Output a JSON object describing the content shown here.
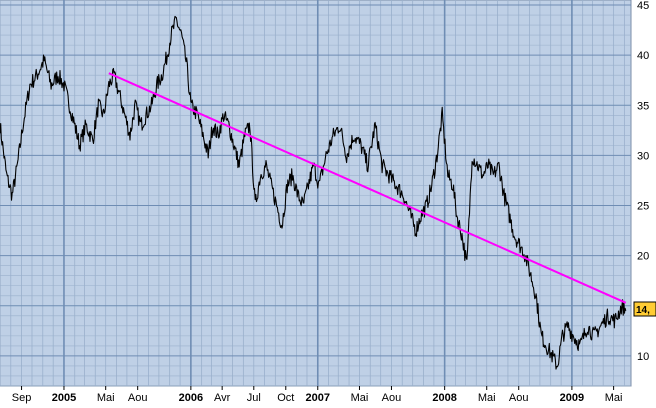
{
  "colors": {
    "plot_background": "#bfd0e6",
    "minor_grid": "#9ab0cc",
    "major_grid": "#6f8db4",
    "price_line": "#000000",
    "trend_line": "#ff00ff",
    "last_value_box": "#ffcc33"
  },
  "last_value_label": "14,",
  "chart_data": {
    "type": "line",
    "title": "",
    "xlabel": "",
    "ylabel": "",
    "ylim": [
      7,
      45.5
    ],
    "yticks": [
      10,
      15,
      20,
      25,
      30,
      35,
      40,
      45
    ],
    "y_axis_position": "right",
    "grid": true,
    "xlim": [
      "2004-07-01",
      "2009-06-20"
    ],
    "x_ticks": [
      {
        "label": "Sep",
        "date": "2004-09-01",
        "major": false
      },
      {
        "label": "2005",
        "date": "2005-01-01",
        "major": true
      },
      {
        "label": "Mai",
        "date": "2005-05-01",
        "major": false
      },
      {
        "label": "Aou",
        "date": "2005-08-01",
        "major": false
      },
      {
        "label": "2006",
        "date": "2006-01-01",
        "major": true
      },
      {
        "label": "Avr",
        "date": "2006-04-01",
        "major": false
      },
      {
        "label": "Jul",
        "date": "2006-07-01",
        "major": false
      },
      {
        "label": "Oct",
        "date": "2006-10-01",
        "major": false
      },
      {
        "label": "2007",
        "date": "2007-01-01",
        "major": true
      },
      {
        "label": "Mai",
        "date": "2007-05-01",
        "major": false
      },
      {
        "label": "Aou",
        "date": "2007-08-01",
        "major": false
      },
      {
        "label": "2008",
        "date": "2008-01-01",
        "major": true
      },
      {
        "label": "Mai",
        "date": "2008-05-01",
        "major": false
      },
      {
        "label": "Aou",
        "date": "2008-08-01",
        "major": false
      },
      {
        "label": "2009",
        "date": "2009-01-01",
        "major": true
      },
      {
        "label": "Mai",
        "date": "2009-05-01",
        "major": false
      }
    ],
    "series": [
      {
        "type": "line",
        "x": [
          "2004-07-01",
          "2004-07-20",
          "2004-08-05",
          "2004-08-20",
          "2004-09-05",
          "2004-09-25",
          "2004-10-15",
          "2004-11-05",
          "2004-11-25",
          "2004-12-15",
          "2005-01-01",
          "2005-01-25",
          "2005-02-15",
          "2005-03-05",
          "2005-03-25",
          "2005-04-10",
          "2005-04-25",
          "2005-05-10",
          "2005-05-25",
          "2005-06-10",
          "2005-06-25",
          "2005-07-10",
          "2005-07-25",
          "2005-08-10",
          "2005-08-25",
          "2005-09-10",
          "2005-09-25",
          "2005-10-10",
          "2005-10-25",
          "2005-11-05",
          "2005-11-20",
          "2005-12-05",
          "2005-12-20",
          "2006-01-01",
          "2006-01-20",
          "2006-02-05",
          "2006-02-20",
          "2006-03-05",
          "2006-03-20",
          "2006-04-05",
          "2006-04-20",
          "2006-05-05",
          "2006-05-20",
          "2006-06-05",
          "2006-06-20",
          "2006-07-05",
          "2006-07-20",
          "2006-08-05",
          "2006-08-20",
          "2006-09-05",
          "2006-09-20",
          "2006-10-05",
          "2006-10-20",
          "2006-11-05",
          "2006-11-20",
          "2006-12-05",
          "2006-12-20",
          "2007-01-05",
          "2007-01-25",
          "2007-02-15",
          "2007-03-05",
          "2007-03-25",
          "2007-04-15",
          "2007-05-05",
          "2007-05-25",
          "2007-06-15",
          "2007-07-05",
          "2007-07-25",
          "2007-08-15",
          "2007-09-05",
          "2007-09-25",
          "2007-10-10",
          "2007-10-25",
          "2007-11-10",
          "2007-11-25",
          "2007-12-10",
          "2007-12-25",
          "2008-01-10",
          "2008-01-25",
          "2008-02-05",
          "2008-02-20",
          "2008-03-05",
          "2008-03-20",
          "2008-04-05",
          "2008-04-20",
          "2008-05-05",
          "2008-05-20",
          "2008-06-05",
          "2008-06-20",
          "2008-07-05",
          "2008-07-20",
          "2008-08-05",
          "2008-08-20",
          "2008-09-05",
          "2008-09-20",
          "2008-10-05",
          "2008-10-20",
          "2008-11-05",
          "2008-11-20",
          "2008-12-05",
          "2008-12-20",
          "2009-01-05",
          "2009-01-25",
          "2009-02-15",
          "2009-03-05",
          "2009-03-25",
          "2009-04-15",
          "2009-05-05",
          "2009-05-25",
          "2009-06-05"
        ],
        "values": [
          33,
          28,
          26,
          29,
          33,
          37,
          38,
          39.5,
          37,
          38,
          37,
          34,
          31,
          33,
          31.5,
          35,
          34,
          37,
          38,
          36,
          34,
          32,
          35,
          33,
          34,
          35,
          37,
          38,
          40,
          42,
          43.5,
          42,
          39,
          35,
          34,
          32,
          30,
          33,
          32,
          34,
          33,
          31,
          29,
          32,
          33,
          25,
          28,
          29,
          27,
          25,
          23,
          27,
          28,
          26,
          25,
          27,
          29,
          27,
          30,
          32,
          33,
          30,
          32,
          31,
          29,
          33,
          29,
          28,
          27,
          26,
          24,
          22.5,
          24,
          25,
          27,
          30,
          34,
          28,
          27,
          24,
          22,
          19,
          30,
          29,
          28,
          29,
          28,
          29,
          26,
          24,
          22,
          21,
          20,
          18,
          16,
          12,
          11,
          10,
          9,
          12,
          13,
          12,
          11,
          13,
          12,
          13,
          14,
          13.5,
          15,
          14.5
        ]
      },
      {
        "type": "trendline",
        "x": [
          "2005-05-10",
          "2009-06-05"
        ],
        "values": [
          38.2,
          15.3
        ]
      }
    ]
  }
}
